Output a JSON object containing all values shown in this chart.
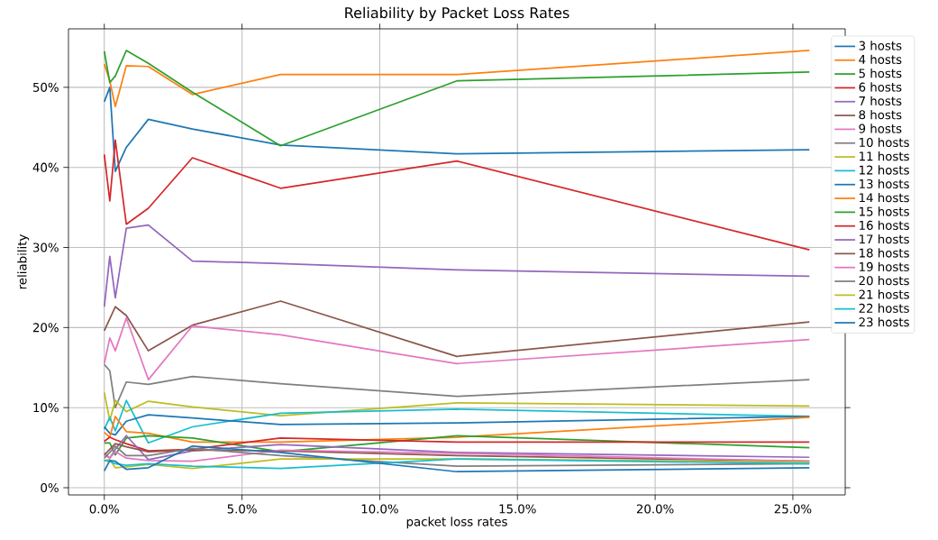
{
  "chart_data": {
    "type": "line",
    "title": "Reliability by Packet Loss Rates",
    "xlabel": "packet loss rates",
    "ylabel": "reliability",
    "x": [
      0,
      0.2,
      0.4,
      0.8,
      1.6,
      3.2,
      6.4,
      12.8,
      25.6
    ],
    "xlim": [
      -1.3,
      26.9
    ],
    "ylim": [
      -0.9,
      57.3
    ],
    "xticks": [
      {
        "value": 0,
        "label": "0.0%"
      },
      {
        "value": 5,
        "label": "5.0%"
      },
      {
        "value": 10,
        "label": "10.0%"
      },
      {
        "value": 15,
        "label": "15.0%"
      },
      {
        "value": 20,
        "label": "20.0%"
      },
      {
        "value": 25,
        "label": "25.0%"
      }
    ],
    "yticks": [
      {
        "value": 0,
        "label": "0%"
      },
      {
        "value": 10,
        "label": "10%"
      },
      {
        "value": 20,
        "label": "20%"
      },
      {
        "value": 30,
        "label": "30%"
      },
      {
        "value": 40,
        "label": "40%"
      },
      {
        "value": 50,
        "label": "50%"
      }
    ],
    "grid": true,
    "legend": "top right",
    "marker": "none",
    "line_style": "solid",
    "series": [
      {
        "name": "3 hosts",
        "color": "#1f77b4",
        "values": [
          48.2,
          50.0,
          39.5,
          42.5,
          46.0,
          44.8,
          42.8,
          41.7,
          42.2
        ]
      },
      {
        "name": "4 hosts",
        "color": "#ff7f0e",
        "values": [
          52.9,
          50.8,
          47.6,
          52.7,
          52.6,
          49.1,
          51.6,
          51.6,
          54.6
        ]
      },
      {
        "name": "5 hosts",
        "color": "#2ca02c",
        "values": [
          54.5,
          50.6,
          51.4,
          54.6,
          53.0,
          49.4,
          42.7,
          50.8,
          51.9
        ]
      },
      {
        "name": "6 hosts",
        "color": "#d62728",
        "values": [
          41.6,
          35.8,
          43.4,
          32.9,
          34.9,
          41.2,
          37.4,
          40.8,
          29.7
        ]
      },
      {
        "name": "7 hosts",
        "color": "#9467bd",
        "values": [
          22.6,
          28.9,
          23.7,
          32.4,
          32.8,
          28.3,
          28.0,
          27.2,
          26.4
        ]
      },
      {
        "name": "8 hosts",
        "color": "#8c564b",
        "values": [
          19.6,
          21.1,
          22.6,
          21.5,
          17.1,
          20.3,
          23.3,
          16.4,
          20.7
        ]
      },
      {
        "name": "9 hosts",
        "color": "#e377c2",
        "values": [
          15.5,
          18.7,
          17.1,
          21.2,
          13.5,
          20.2,
          19.1,
          15.5,
          18.5
        ]
      },
      {
        "name": "10 hosts",
        "color": "#7f7f7f",
        "values": [
          15.4,
          14.6,
          10.0,
          13.2,
          12.9,
          13.9,
          13.0,
          11.4,
          13.5
        ]
      },
      {
        "name": "11 hosts",
        "color": "#bcbd22",
        "values": [
          11.9,
          8.4,
          10.9,
          9.5,
          10.8,
          10.1,
          9.0,
          10.6,
          10.2
        ]
      },
      {
        "name": "12 hosts",
        "color": "#17becf",
        "values": [
          7.3,
          8.8,
          7.1,
          10.9,
          5.6,
          7.6,
          9.3,
          9.8,
          8.9
        ]
      },
      {
        "name": "13 hosts",
        "color": "#1f77b4",
        "values": [
          7.6,
          6.8,
          6.6,
          8.3,
          9.1,
          8.7,
          7.9,
          8.1,
          8.9
        ]
      },
      {
        "name": "14 hosts",
        "color": "#ff7f0e",
        "values": [
          6.9,
          6.3,
          8.9,
          7.0,
          6.8,
          5.7,
          5.7,
          6.3,
          8.8
        ]
      },
      {
        "name": "15 hosts",
        "color": "#2ca02c",
        "values": [
          5.6,
          5.6,
          4.1,
          6.2,
          6.5,
          6.2,
          4.5,
          6.5,
          5.0
        ]
      },
      {
        "name": "16 hosts",
        "color": "#d62728",
        "values": [
          5.8,
          6.3,
          6.0,
          5.5,
          4.6,
          4.8,
          6.2,
          5.7,
          5.7
        ]
      },
      {
        "name": "17 hosts",
        "color": "#9467bd",
        "values": [
          4.3,
          3.7,
          4.8,
          6.5,
          3.5,
          4.6,
          5.4,
          4.4,
          3.8
        ]
      },
      {
        "name": "18 hosts",
        "color": "#8c564b",
        "values": [
          4.1,
          4.8,
          5.5,
          5.1,
          4.5,
          4.7,
          4.6,
          4.0,
          3.3
        ]
      },
      {
        "name": "19 hosts",
        "color": "#e377c2",
        "values": [
          4.1,
          3.7,
          4.5,
          3.7,
          3.4,
          3.3,
          4.7,
          4.3,
          3.3
        ]
      },
      {
        "name": "20 hosts",
        "color": "#7f7f7f",
        "values": [
          3.7,
          4.4,
          5.2,
          4.0,
          4.0,
          4.9,
          4.0,
          2.7,
          3.0
        ]
      },
      {
        "name": "21 hosts",
        "color": "#bcbd22",
        "values": [
          3.4,
          3.5,
          2.5,
          2.6,
          2.9,
          2.4,
          3.6,
          3.6,
          3.2
        ]
      },
      {
        "name": "22 hosts",
        "color": "#17becf",
        "values": [
          3.4,
          3.3,
          3.0,
          2.8,
          3.0,
          2.7,
          2.4,
          3.6,
          3.0
        ]
      },
      {
        "name": "23 hosts",
        "color": "#1f77b4",
        "values": [
          2.1,
          3.4,
          3.3,
          2.3,
          2.5,
          5.2,
          4.4,
          2.0,
          2.5
        ]
      }
    ]
  }
}
